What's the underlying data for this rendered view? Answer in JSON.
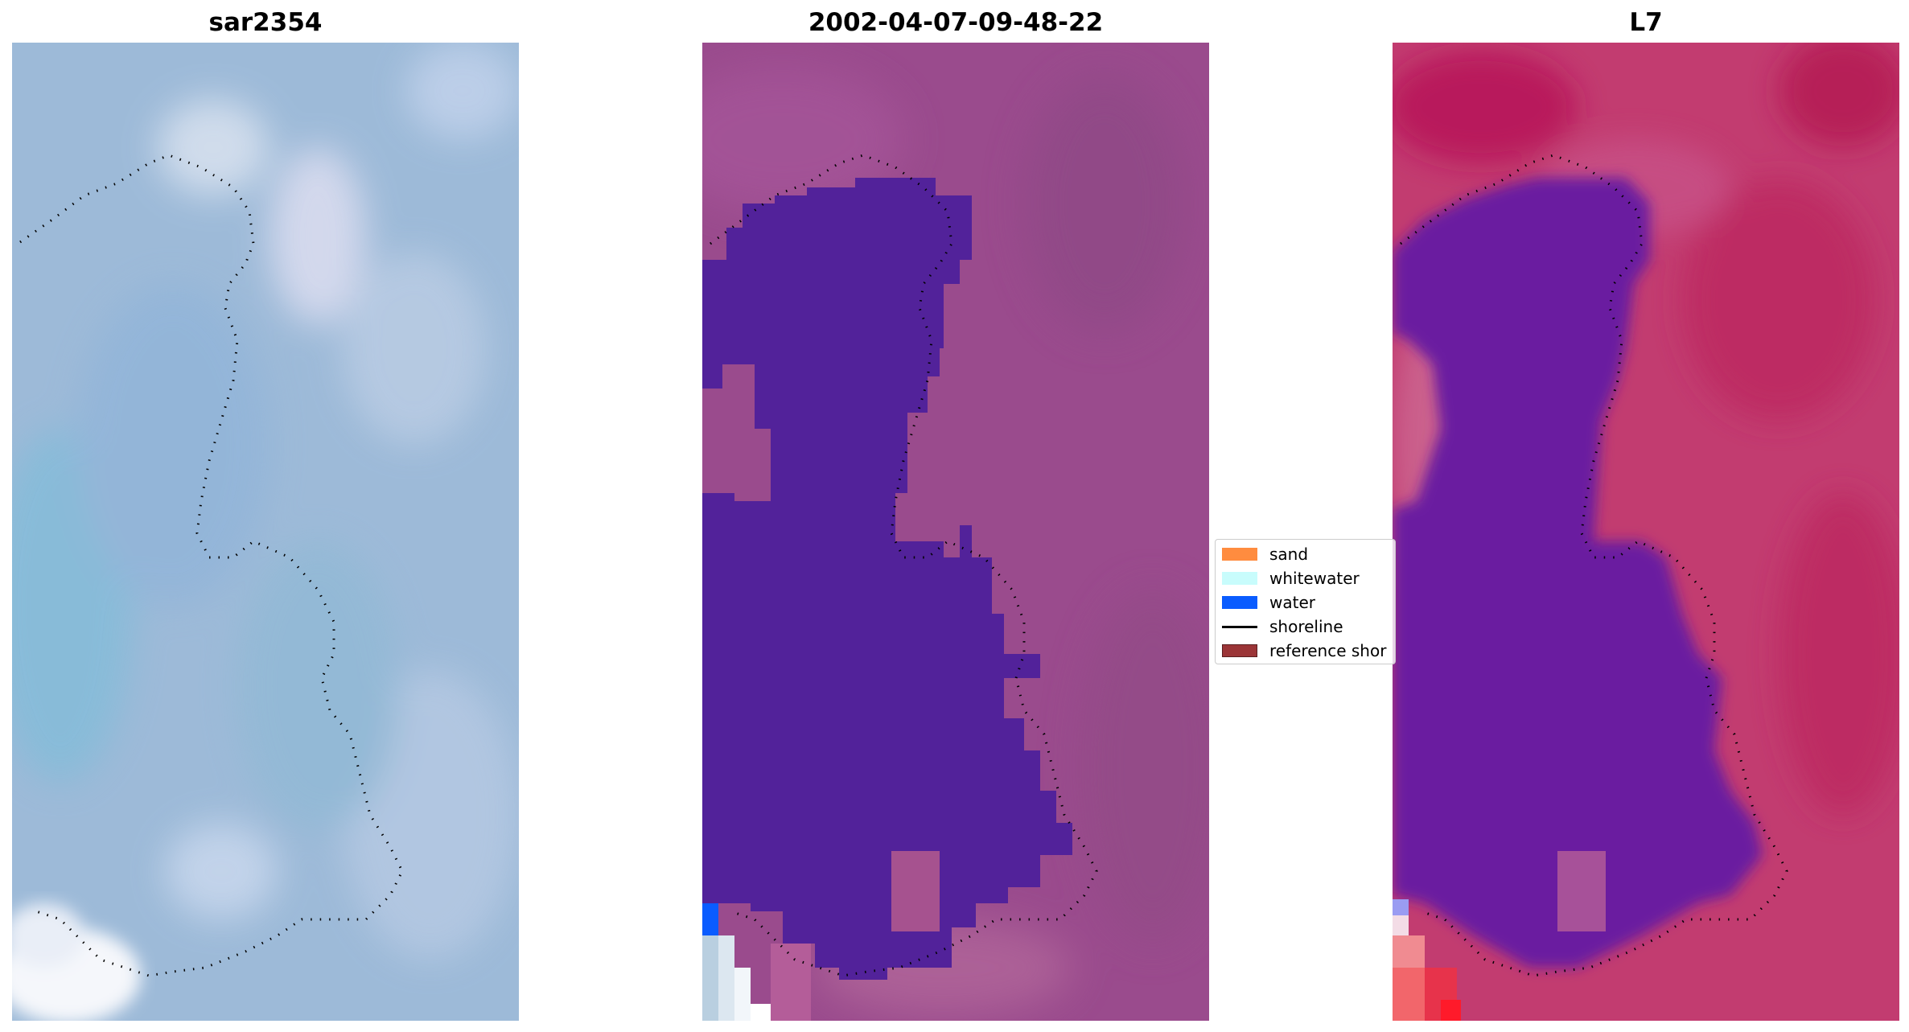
{
  "panels": [
    {
      "title": "sar2354",
      "base_color": "#9dbad8"
    },
    {
      "title": "2002-04-07-09-48-22",
      "base_color": "#9a4b8d",
      "classified_water_color": "#52229a"
    },
    {
      "title": "L7",
      "base_color": "#c23c70",
      "water_color": "#6a1da0"
    }
  ],
  "legend": {
    "items": [
      {
        "label": "sand",
        "type": "patch",
        "color": "#ff8c3f"
      },
      {
        "label": "whitewater",
        "type": "patch",
        "color": "#c8fcfc"
      },
      {
        "label": "water",
        "type": "patch",
        "color": "#0a5cff"
      },
      {
        "label": "shoreline",
        "type": "line",
        "color": "#000000"
      },
      {
        "label": "reference shor",
        "type": "patch",
        "color": "#9b3537"
      }
    ]
  },
  "colors": {
    "shoreline_dots": "#000000",
    "background": "#ffffff"
  }
}
